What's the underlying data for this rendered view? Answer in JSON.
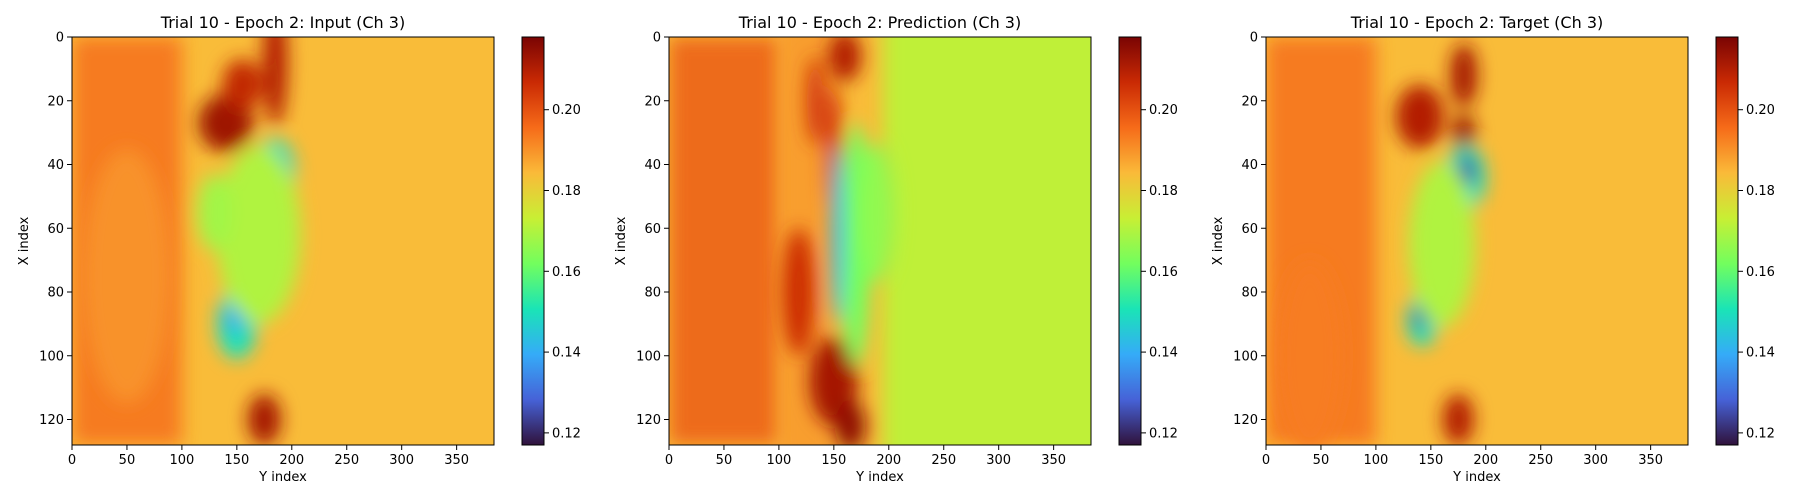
{
  "chart_data": [
    {
      "type": "heatmap",
      "title": "Trial 10 - Epoch 2: Input (Ch 3)",
      "xlabel": "Y index",
      "ylabel": "X index",
      "xlim": [
        0,
        384
      ],
      "ylim": [
        128,
        0
      ],
      "xticks": [
        0,
        50,
        100,
        150,
        200,
        250,
        300,
        350
      ],
      "yticks": [
        0,
        20,
        40,
        60,
        80,
        100,
        120
      ],
      "colormap": "turbo",
      "clim": [
        0.117,
        0.218
      ],
      "colorbar_ticks": [
        0.12,
        0.14,
        0.16,
        0.18,
        0.2
      ],
      "colorbar_ticklabels": [
        "0.12",
        "0.14",
        "0.16",
        "0.18",
        "0.20"
      ],
      "features": [
        {
          "x": 140,
          "y": 27,
          "w": 25,
          "h": 9,
          "value": 0.213
        },
        {
          "x": 155,
          "y": 15,
          "w": 18,
          "h": 8,
          "value": 0.208
        },
        {
          "x": 185,
          "y": 8,
          "w": 11,
          "h": 20,
          "value": 0.21
        },
        {
          "x": 175,
          "y": 120,
          "w": 15,
          "h": 8,
          "value": 0.212
        },
        {
          "x": 185,
          "y": 42,
          "w": 18,
          "h": 10,
          "value": 0.15
        },
        {
          "x": 188,
          "y": 42,
          "w": 8,
          "h": 5,
          "value": 0.13
        },
        {
          "x": 150,
          "y": 90,
          "w": 18,
          "h": 11,
          "value": 0.15
        },
        {
          "x": 148,
          "y": 88,
          "w": 8,
          "h": 5,
          "value": 0.138
        },
        {
          "x": 170,
          "y": 62,
          "w": 38,
          "h": 28,
          "value": 0.17
        },
        {
          "x": 130,
          "y": 55,
          "w": 16,
          "h": 12,
          "value": 0.168
        },
        {
          "x": 50,
          "y": 75,
          "w": 40,
          "h": 40,
          "value": 0.19
        }
      ]
    },
    {
      "type": "heatmap",
      "title": "Trial 10 - Epoch 2: Prediction (Ch 3)",
      "xlabel": "Y index",
      "ylabel": "X index",
      "xlim": [
        0,
        384
      ],
      "ylim": [
        128,
        0
      ],
      "xticks": [
        0,
        50,
        100,
        150,
        200,
        250,
        300,
        350
      ],
      "yticks": [
        0,
        20,
        40,
        60,
        80,
        100,
        120
      ],
      "colormap": "turbo",
      "clim": [
        0.117,
        0.218
      ],
      "colorbar_ticks": [
        0.12,
        0.14,
        0.16,
        0.18,
        0.2
      ],
      "colorbar_ticklabels": [
        "0.12",
        "0.14",
        "0.16",
        "0.18",
        "0.20"
      ],
      "features": [
        {
          "x": 150,
          "y": 108,
          "w": 22,
          "h": 14,
          "value": 0.212
        },
        {
          "x": 165,
          "y": 122,
          "w": 14,
          "h": 8,
          "value": 0.215
        },
        {
          "x": 118,
          "y": 80,
          "w": 15,
          "h": 20,
          "value": 0.206
        },
        {
          "x": 160,
          "y": 6,
          "w": 15,
          "h": 8,
          "value": 0.21
        },
        {
          "x": 133,
          "y": 20,
          "w": 8,
          "h": 14,
          "value": 0.205
        },
        {
          "x": 150,
          "y": 35,
          "w": 8,
          "h": 20,
          "value": 0.204
        },
        {
          "x": 170,
          "y": 65,
          "w": 14,
          "h": 38,
          "value": 0.162
        },
        {
          "x": 153,
          "y": 62,
          "w": 5,
          "h": 28,
          "value": 0.138
        },
        {
          "x": 190,
          "y": 55,
          "w": 16,
          "h": 22,
          "value": 0.166
        }
      ]
    },
    {
      "type": "heatmap",
      "title": "Trial 10 - Epoch 2: Target (Ch 3)",
      "xlabel": "Y index",
      "ylabel": "X index",
      "xlim": [
        0,
        384
      ],
      "ylim": [
        128,
        0
      ],
      "xticks": [
        0,
        50,
        100,
        150,
        200,
        250,
        300,
        350
      ],
      "yticks": [
        0,
        20,
        40,
        60,
        80,
        100,
        120
      ],
      "colormap": "turbo",
      "clim": [
        0.117,
        0.218
      ],
      "colorbar_ticks": [
        0.12,
        0.14,
        0.16,
        0.18,
        0.2
      ],
      "colorbar_ticklabels": [
        "0.12",
        "0.14",
        "0.16",
        "0.18",
        "0.20"
      ],
      "features": [
        {
          "x": 140,
          "y": 25,
          "w": 22,
          "h": 10,
          "value": 0.21
        },
        {
          "x": 180,
          "y": 12,
          "w": 12,
          "h": 10,
          "value": 0.212
        },
        {
          "x": 180,
          "y": 30,
          "w": 10,
          "h": 6,
          "value": 0.214
        },
        {
          "x": 175,
          "y": 120,
          "w": 14,
          "h": 8,
          "value": 0.21
        },
        {
          "x": 182,
          "y": 44,
          "w": 18,
          "h": 10,
          "value": 0.15
        },
        {
          "x": 183,
          "y": 42,
          "w": 8,
          "h": 5,
          "value": 0.125
        },
        {
          "x": 142,
          "y": 89,
          "w": 14,
          "h": 8,
          "value": 0.15
        },
        {
          "x": 140,
          "y": 88,
          "w": 6,
          "h": 4,
          "value": 0.125
        },
        {
          "x": 160,
          "y": 65,
          "w": 30,
          "h": 26,
          "value": 0.17
        },
        {
          "x": 40,
          "y": 100,
          "w": 30,
          "h": 30,
          "value": 0.193
        }
      ]
    }
  ],
  "colors": {
    "turbo_stops": [
      "#30123b",
      "#4662d7",
      "#35abf8",
      "#1ae4b6",
      "#72fe5e",
      "#c8ef34",
      "#faba39",
      "#f66b19",
      "#ca2a04",
      "#7a0403"
    ],
    "background_value": 0.184,
    "band_value": 0.195
  }
}
